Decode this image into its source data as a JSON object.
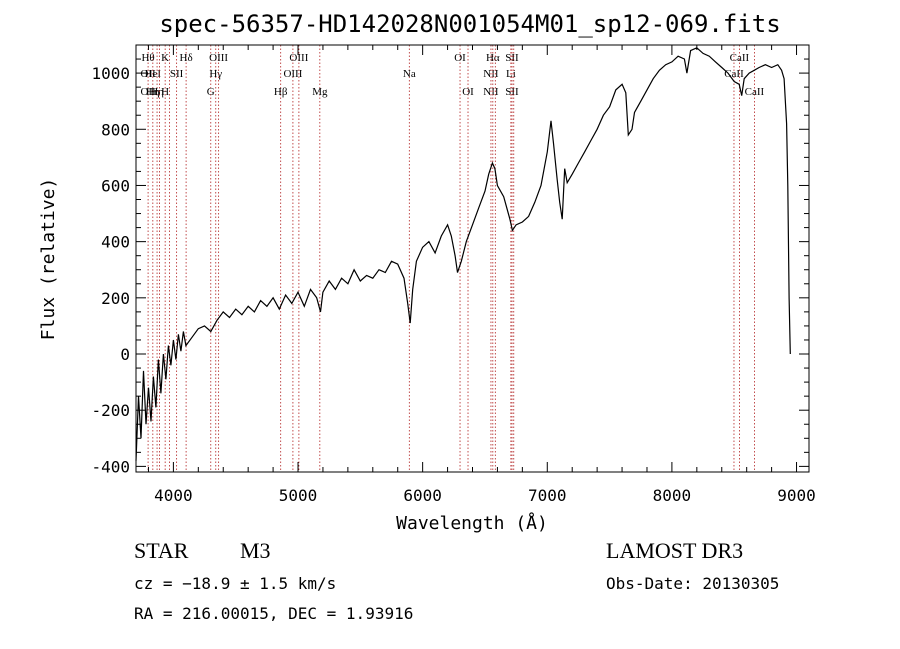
{
  "chart_data": {
    "type": "line",
    "title": "spec-56357-HD142028N001054M01_sp12-069.fits",
    "xlabel": "Wavelength (Å)",
    "ylabel": "Flux (relative)",
    "xlim": [
      3700,
      9100
    ],
    "ylim": [
      -420,
      1100
    ],
    "xticks": [
      4000,
      5000,
      6000,
      7000,
      8000,
      9000
    ],
    "yticks": [
      -400,
      -200,
      0,
      200,
      400,
      600,
      800,
      1000
    ],
    "grid": false,
    "series": [
      {
        "name": "flux",
        "color": "#000000",
        "points": [
          [
            3700,
            -380
          ],
          [
            3720,
            -150
          ],
          [
            3740,
            -300
          ],
          [
            3760,
            -60
          ],
          [
            3780,
            -250
          ],
          [
            3800,
            -120
          ],
          [
            3820,
            -240
          ],
          [
            3840,
            -80
          ],
          [
            3860,
            -190
          ],
          [
            3880,
            -20
          ],
          [
            3900,
            -140
          ],
          [
            3920,
            0
          ],
          [
            3940,
            -90
          ],
          [
            3960,
            30
          ],
          [
            3980,
            -40
          ],
          [
            4000,
            50
          ],
          [
            4020,
            -20
          ],
          [
            4040,
            70
          ],
          [
            4060,
            10
          ],
          [
            4080,
            80
          ],
          [
            4100,
            30
          ],
          [
            4150,
            60
          ],
          [
            4200,
            90
          ],
          [
            4250,
            100
          ],
          [
            4300,
            80
          ],
          [
            4350,
            120
          ],
          [
            4400,
            150
          ],
          [
            4450,
            130
          ],
          [
            4500,
            160
          ],
          [
            4550,
            140
          ],
          [
            4600,
            170
          ],
          [
            4650,
            150
          ],
          [
            4700,
            190
          ],
          [
            4750,
            170
          ],
          [
            4800,
            200
          ],
          [
            4850,
            160
          ],
          [
            4900,
            210
          ],
          [
            4950,
            180
          ],
          [
            5000,
            220
          ],
          [
            5050,
            170
          ],
          [
            5100,
            230
          ],
          [
            5150,
            200
          ],
          [
            5180,
            150
          ],
          [
            5200,
            220
          ],
          [
            5250,
            260
          ],
          [
            5300,
            230
          ],
          [
            5350,
            270
          ],
          [
            5400,
            250
          ],
          [
            5450,
            300
          ],
          [
            5500,
            260
          ],
          [
            5550,
            280
          ],
          [
            5600,
            270
          ],
          [
            5650,
            300
          ],
          [
            5700,
            290
          ],
          [
            5750,
            330
          ],
          [
            5800,
            320
          ],
          [
            5850,
            270
          ],
          [
            5880,
            180
          ],
          [
            5900,
            110
          ],
          [
            5920,
            230
          ],
          [
            5950,
            330
          ],
          [
            6000,
            380
          ],
          [
            6050,
            400
          ],
          [
            6100,
            360
          ],
          [
            6150,
            420
          ],
          [
            6200,
            460
          ],
          [
            6230,
            420
          ],
          [
            6260,
            350
          ],
          [
            6280,
            290
          ],
          [
            6310,
            330
          ],
          [
            6350,
            400
          ],
          [
            6400,
            460
          ],
          [
            6450,
            520
          ],
          [
            6500,
            580
          ],
          [
            6530,
            640
          ],
          [
            6560,
            680
          ],
          [
            6580,
            660
          ],
          [
            6600,
            600
          ],
          [
            6650,
            560
          ],
          [
            6700,
            480
          ],
          [
            6720,
            440
          ],
          [
            6750,
            460
          ],
          [
            6800,
            470
          ],
          [
            6850,
            490
          ],
          [
            6900,
            540
          ],
          [
            6950,
            600
          ],
          [
            7000,
            720
          ],
          [
            7030,
            830
          ],
          [
            7050,
            750
          ],
          [
            7080,
            620
          ],
          [
            7100,
            540
          ],
          [
            7120,
            480
          ],
          [
            7140,
            660
          ],
          [
            7160,
            610
          ],
          [
            7200,
            640
          ],
          [
            7250,
            680
          ],
          [
            7300,
            720
          ],
          [
            7350,
            760
          ],
          [
            7400,
            800
          ],
          [
            7450,
            850
          ],
          [
            7500,
            880
          ],
          [
            7550,
            940
          ],
          [
            7600,
            960
          ],
          [
            7630,
            930
          ],
          [
            7650,
            780
          ],
          [
            7680,
            800
          ],
          [
            7700,
            860
          ],
          [
            7750,
            900
          ],
          [
            7800,
            940
          ],
          [
            7850,
            980
          ],
          [
            7900,
            1010
          ],
          [
            7950,
            1030
          ],
          [
            8000,
            1040
          ],
          [
            8050,
            1060
          ],
          [
            8100,
            1050
          ],
          [
            8120,
            1000
          ],
          [
            8150,
            1080
          ],
          [
            8200,
            1090
          ],
          [
            8250,
            1070
          ],
          [
            8300,
            1060
          ],
          [
            8350,
            1040
          ],
          [
            8400,
            1020
          ],
          [
            8450,
            1000
          ],
          [
            8500,
            970
          ],
          [
            8540,
            960
          ],
          [
            8560,
            920
          ],
          [
            8580,
            980
          ],
          [
            8620,
            1000
          ],
          [
            8660,
            1010
          ],
          [
            8700,
            1020
          ],
          [
            8750,
            1030
          ],
          [
            8800,
            1020
          ],
          [
            8850,
            1030
          ],
          [
            8880,
            1010
          ],
          [
            8900,
            980
          ],
          [
            8920,
            820
          ],
          [
            8930,
            600
          ],
          [
            8940,
            200
          ],
          [
            8950,
            0
          ]
        ]
      }
    ],
    "lines": [
      {
        "w": 3797,
        "labels": [
          "Hθ",
          "OII",
          "OII"
        ]
      },
      {
        "w": 3835,
        "labels": [
          "",
          "HeI",
          "Hη"
        ]
      },
      {
        "w": 3869,
        "labels": [
          "",
          "",
          "Hη"
        ]
      },
      {
        "w": 3889,
        "labels": [
          "",
          "",
          ""
        ]
      },
      {
        "w": 3934,
        "labels": [
          "K",
          "",
          "H"
        ]
      },
      {
        "w": 3968,
        "labels": [
          "",
          "",
          ""
        ]
      },
      {
        "w": 4026,
        "labels": [
          "",
          "SII",
          ""
        ]
      },
      {
        "w": 4102,
        "labels": [
          "Hδ",
          "",
          ""
        ]
      },
      {
        "w": 4300,
        "labels": [
          "",
          "",
          "G"
        ]
      },
      {
        "w": 4340,
        "labels": [
          "",
          "Hγ",
          ""
        ]
      },
      {
        "w": 4363,
        "labels": [
          "OIII",
          "",
          ""
        ]
      },
      {
        "w": 4861,
        "labels": [
          "",
          "",
          "Hβ"
        ]
      },
      {
        "w": 4959,
        "labels": [
          "",
          "OIII",
          ""
        ]
      },
      {
        "w": 5007,
        "labels": [
          "OIII",
          "",
          ""
        ]
      },
      {
        "w": 5175,
        "labels": [
          "",
          "",
          "Mg"
        ]
      },
      {
        "w": 5893,
        "labels": [
          "",
          "Na",
          ""
        ]
      },
      {
        "w": 6300,
        "labels": [
          "OI",
          "",
          ""
        ]
      },
      {
        "w": 6364,
        "labels": [
          "",
          "",
          "OI"
        ]
      },
      {
        "w": 6548,
        "labels": [
          "",
          "NII",
          "NII"
        ]
      },
      {
        "w": 6563,
        "labels": [
          "Hα",
          "",
          ""
        ]
      },
      {
        "w": 6583,
        "labels": [
          "",
          "",
          ""
        ]
      },
      {
        "w": 6708,
        "labels": [
          "",
          "Li",
          ""
        ]
      },
      {
        "w": 6717,
        "labels": [
          "SII",
          "",
          "SII"
        ]
      },
      {
        "w": 6731,
        "labels": [
          "",
          "",
          ""
        ]
      },
      {
        "w": 8498,
        "labels": [
          "",
          "CaII",
          ""
        ]
      },
      {
        "w": 8542,
        "labels": [
          "CaII",
          "",
          ""
        ]
      },
      {
        "w": 8662,
        "labels": [
          "",
          "",
          "CaII"
        ]
      }
    ]
  },
  "info": {
    "class": "STAR",
    "subclass": "M3",
    "survey": "LAMOST DR3",
    "cz": "cz = −18.9 ± 1.5 km/s",
    "obs_date": "Obs-Date: 20130305",
    "coords": "RA = 216.00015, DEC =    1.93916"
  }
}
